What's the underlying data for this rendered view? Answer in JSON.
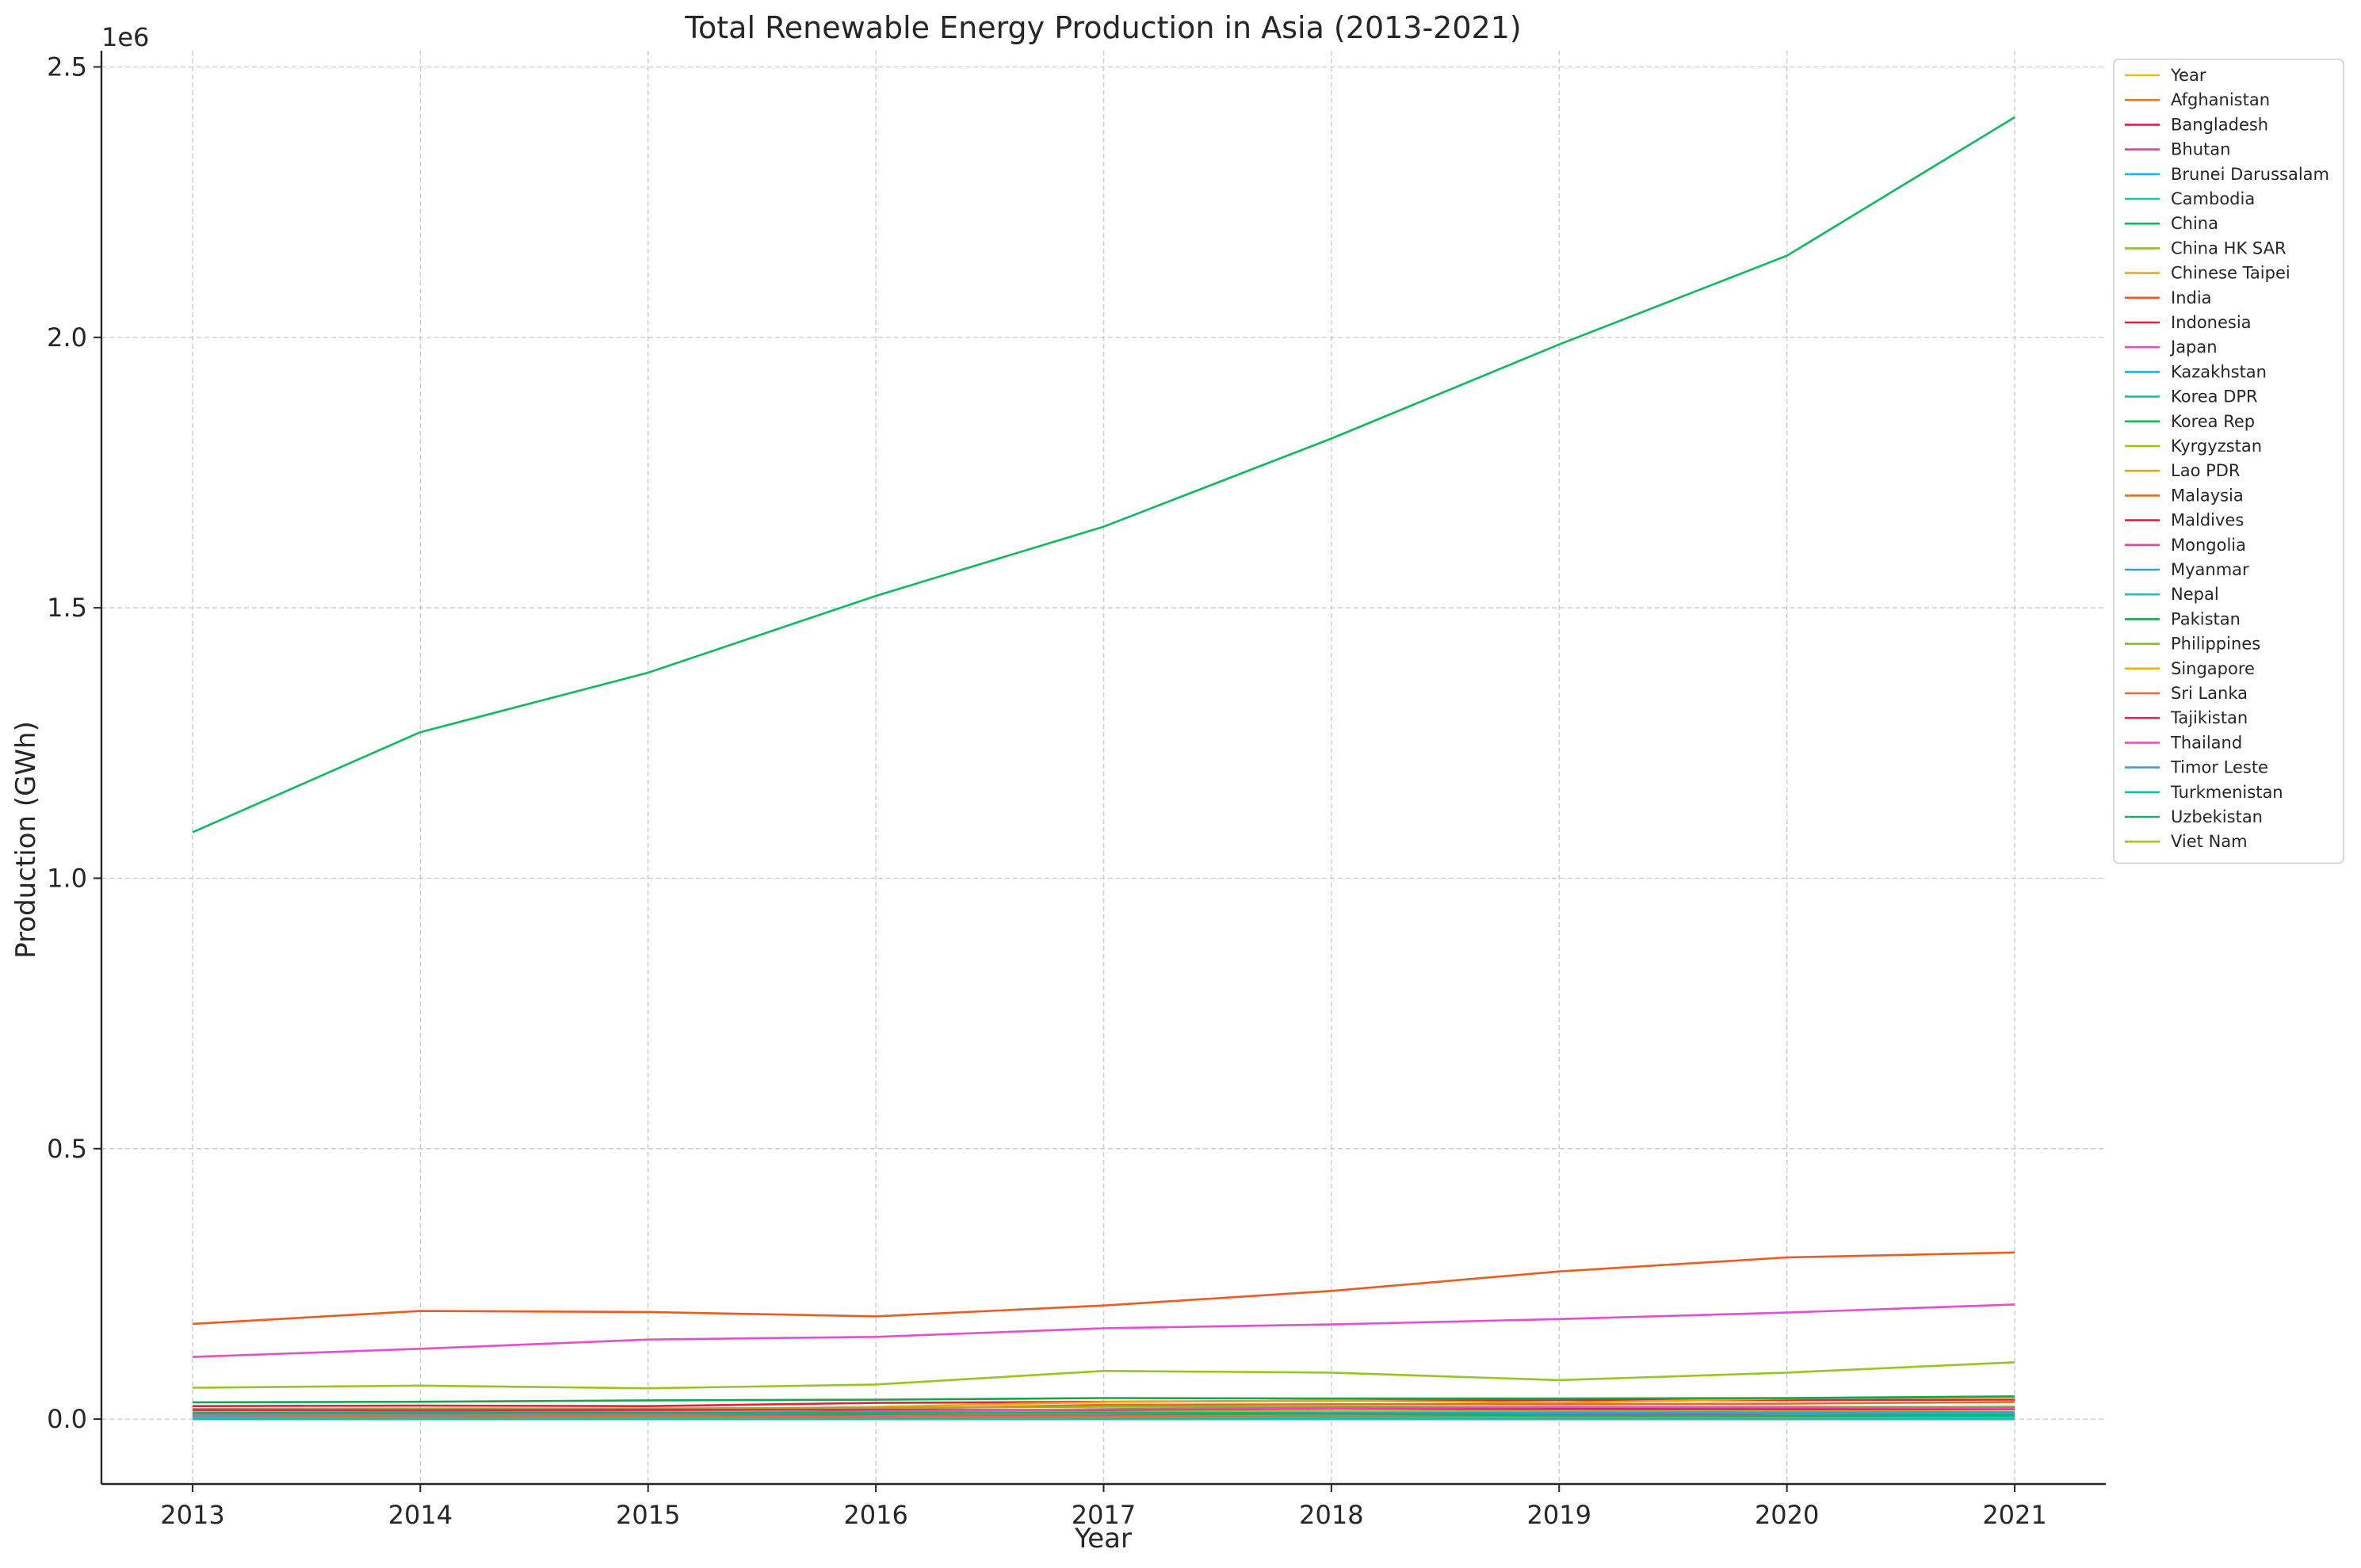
{
  "chart_data": {
    "type": "line",
    "title": "Total Renewable Energy Production in Asia (2013-2021)",
    "xlabel": "Year",
    "ylabel": "Production (GWh)",
    "offset_text": "1e6",
    "x": [
      2013,
      2014,
      2015,
      2016,
      2017,
      2018,
      2019,
      2020,
      2021
    ],
    "xlim": [
      2012.6,
      2021.4
    ],
    "ylim": [
      -120000,
      2530000
    ],
    "y_ticks": [
      0,
      500000,
      1000000,
      1500000,
      2000000,
      2500000
    ],
    "y_tick_labels": [
      "0.0",
      "0.5",
      "1.0",
      "1.5",
      "2.0",
      "2.5"
    ],
    "x_tick_labels": [
      "2013",
      "2014",
      "2015",
      "2016",
      "2017",
      "2018",
      "2019",
      "2020",
      "2021"
    ],
    "grid": true,
    "legend_position": "upper right, outside plot",
    "series": [
      {
        "name": "Year",
        "color": "#f5b700",
        "values": [
          2013,
          2014,
          2015,
          2016,
          2017,
          2018,
          2019,
          2020,
          2021
        ]
      },
      {
        "name": "Afghanistan",
        "color": "#f07025",
        "values": [
          1000,
          1000,
          1100,
          1100,
          1100,
          1000,
          1000,
          1000,
          1000
        ]
      },
      {
        "name": "Bangladesh",
        "color": "#e8174c",
        "values": [
          1000,
          1000,
          1000,
          1100,
          1100,
          1200,
          1300,
          1500,
          1600
        ]
      },
      {
        "name": "Bhutan",
        "color": "#e63ca0",
        "values": [
          7000,
          7800,
          7700,
          8000,
          7700,
          7700,
          8800,
          10500,
          9600
        ]
      },
      {
        "name": "Brunei Darussalam",
        "color": "#1fb1ef",
        "values": [
          10,
          10,
          10,
          10,
          10,
          10,
          10,
          10,
          10
        ]
      },
      {
        "name": "Cambodia",
        "color": "#17c4b5",
        "values": [
          1200,
          1800,
          2000,
          2700,
          2700,
          3800,
          3800,
          3600,
          4000
        ]
      },
      {
        "name": "China",
        "color": "#0cbc5c",
        "values": [
          1085000,
          1270000,
          1380000,
          1522000,
          1650000,
          1813000,
          1987000,
          2151000,
          2407000
        ]
      },
      {
        "name": "China HK SAR",
        "color": "#8dc21f",
        "values": [
          10,
          10,
          10,
          10,
          10,
          10,
          10,
          10,
          10
        ]
      },
      {
        "name": "Chinese Taipei",
        "color": "#f5a70a",
        "values": [
          10000,
          11000,
          11500,
          11000,
          10500,
          12500,
          14500,
          15500,
          17500
        ]
      },
      {
        "name": "India",
        "color": "#f05a1e",
        "values": [
          176000,
          200000,
          198000,
          190000,
          210000,
          237000,
          273000,
          299000,
          308000
        ]
      },
      {
        "name": "Indonesia",
        "color": "#e81e3a",
        "values": [
          24000,
          25000,
          24000,
          30000,
          32000,
          34000,
          35000,
          35000,
          36000
        ]
      },
      {
        "name": "Japan",
        "color": "#e94bd1",
        "values": [
          115000,
          130000,
          147000,
          152000,
          168000,
          175000,
          185000,
          197000,
          212000
        ]
      },
      {
        "name": "Kazakhstan",
        "color": "#1fb6d6",
        "values": [
          7700,
          8300,
          9300,
          11500,
          11600,
          10600,
          11200,
          11800,
          11500
        ]
      },
      {
        "name": "Korea DPR",
        "color": "#12c4a0",
        "values": [
          13000,
          13200,
          8800,
          12300,
          12000,
          12600,
          15000,
          11000,
          11500
        ]
      },
      {
        "name": "Korea Rep",
        "color": "#14b84e",
        "values": [
          8000,
          9300,
          9800,
          10700,
          12700,
          14800,
          16200,
          20800,
          23000
        ]
      },
      {
        "name": "Kyrgyzstan",
        "color": "#9bc412",
        "values": [
          14000,
          13100,
          13000,
          13000,
          15300,
          14700,
          14800,
          13800,
          13000
        ]
      },
      {
        "name": "Lao PDR",
        "color": "#f0a500",
        "values": [
          15500,
          15300,
          16500,
          22600,
          31700,
          34300,
          30000,
          38100,
          41000
        ]
      },
      {
        "name": "Malaysia",
        "color": "#e86a1e",
        "values": [
          11000,
          13000,
          16300,
          18500,
          26500,
          27500,
          27500,
          28500,
          31700
        ]
      },
      {
        "name": "Maldives",
        "color": "#e61e3c",
        "values": [
          5,
          5,
          5,
          5,
          6,
          7,
          8,
          8,
          9
        ]
      },
      {
        "name": "Mongolia",
        "color": "#ed3eaa",
        "values": [
          60,
          70,
          140,
          160,
          200,
          210,
          260,
          300,
          390
        ]
      },
      {
        "name": "Myanmar",
        "color": "#29a3e8",
        "values": [
          9000,
          9100,
          9600,
          11700,
          11300,
          11000,
          12000,
          12000,
          12600
        ]
      },
      {
        "name": "Nepal",
        "color": "#16c7b0",
        "values": [
          3400,
          3600,
          3600,
          3900,
          4200,
          4500,
          5400,
          6300,
          8600
        ]
      },
      {
        "name": "Pakistan",
        "color": "#0fa84a",
        "values": [
          31000,
          32000,
          34700,
          35800,
          39000,
          38000,
          38000,
          39000,
          42000
        ]
      },
      {
        "name": "Philippines",
        "color": "#8cba1a",
        "values": [
          18800,
          19400,
          19800,
          20700,
          23000,
          23300,
          21900,
          22500,
          22500
        ]
      },
      {
        "name": "Singapore",
        "color": "#f2b10c",
        "values": [
          180,
          220,
          260,
          320,
          400,
          470,
          560,
          760,
          880
        ]
      },
      {
        "name": "Sri Lanka",
        "color": "#ee6b2a",
        "values": [
          6800,
          4500,
          5900,
          4200,
          4700,
          6700,
          5500,
          5500,
          7200
        ]
      },
      {
        "name": "Tajikistan",
        "color": "#e0245e",
        "values": [
          16900,
          16400,
          17200,
          17100,
          17000,
          19700,
          19000,
          18100,
          18600
        ]
      },
      {
        "name": "Thailand",
        "color": "#e053be",
        "values": [
          7900,
          9600,
          10000,
          14500,
          18400,
          21000,
          22500,
          22300,
          20400
        ]
      },
      {
        "name": "Timor Leste",
        "color": "#2eaad8",
        "values": [
          0,
          0,
          0,
          0,
          0,
          0,
          0,
          0,
          0
        ]
      },
      {
        "name": "Turkmenistan",
        "color": "#13c2ab",
        "values": [
          5,
          5,
          5,
          5,
          5,
          5,
          5,
          5,
          5
        ]
      },
      {
        "name": "Uzbekistan",
        "color": "#10b36a",
        "values": [
          11200,
          11500,
          11500,
          11600,
          12000,
          10000,
          7200,
          6600,
          7200
        ]
      },
      {
        "name": "Viet Nam",
        "color": "#96c71e",
        "values": [
          58000,
          62000,
          57000,
          64000,
          89000,
          86000,
          72000,
          86000,
          105000
        ]
      }
    ]
  }
}
